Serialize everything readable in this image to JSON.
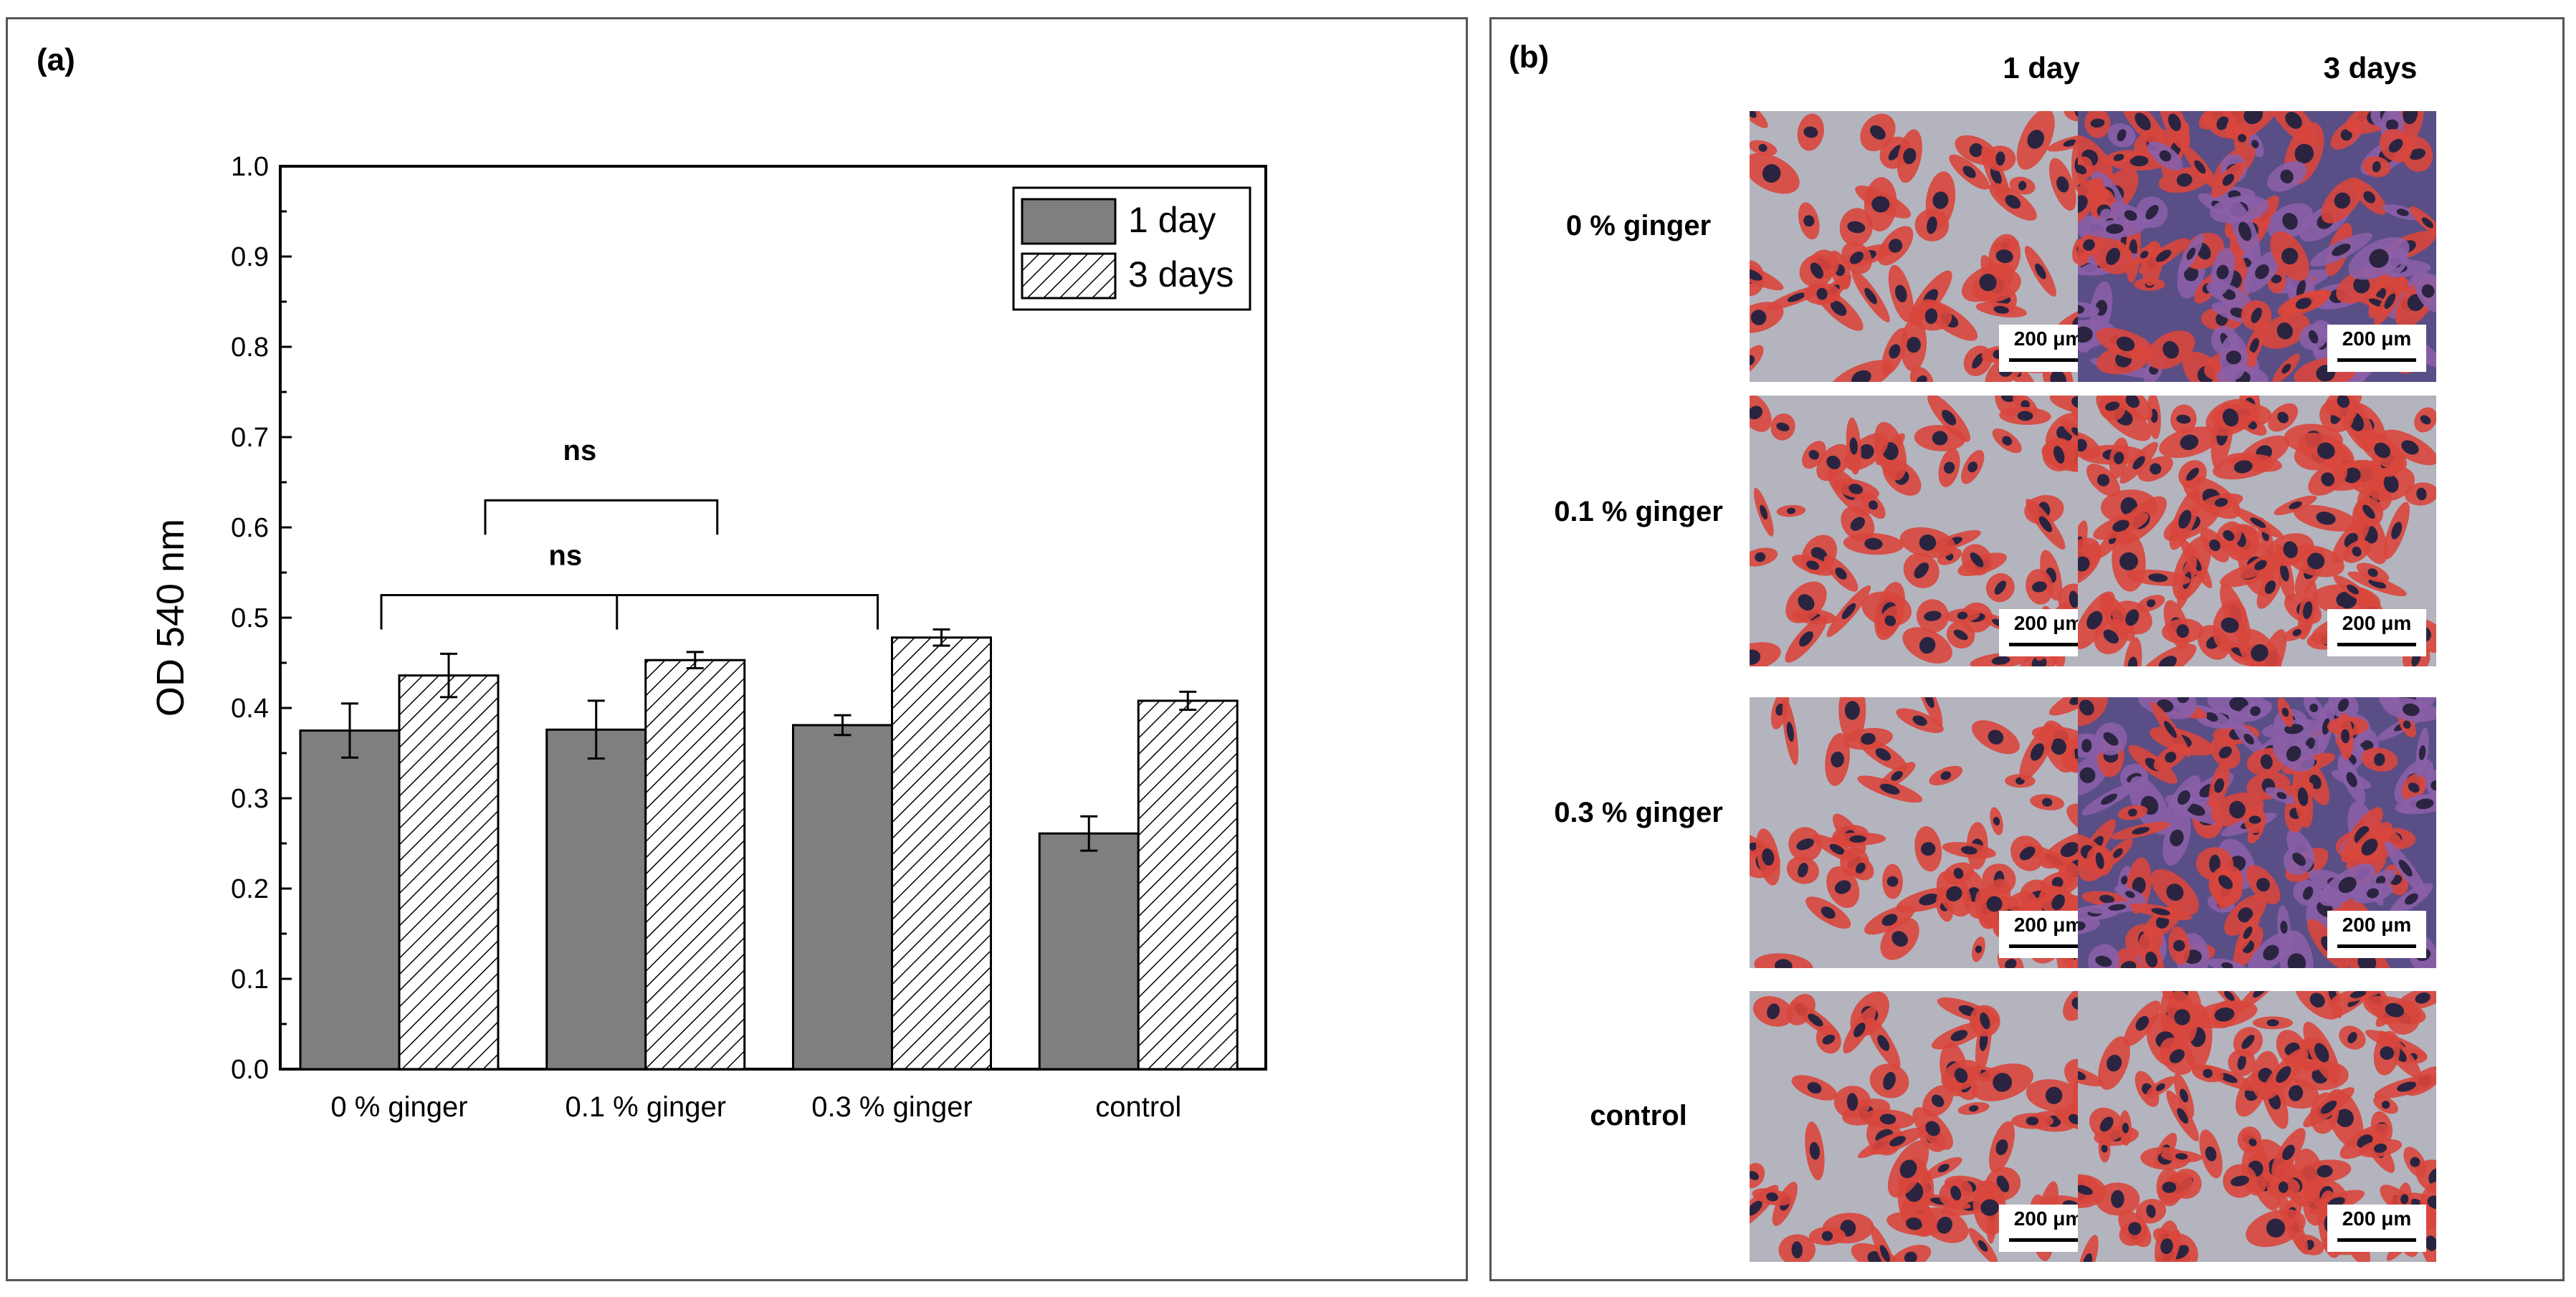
{
  "panel_a": {
    "label": "(a)"
  },
  "panel_b": {
    "label": "(b)",
    "columns": [
      "1 day",
      "3 days"
    ],
    "rows": [
      "0 % ginger",
      "0.1 % ginger",
      "0.3 % ginger",
      "control"
    ],
    "scale_bar": "200 μm",
    "colors": {
      "stain_red": "#d8463c",
      "nuclei": "#2b2440",
      "background": "#b4b4be",
      "dense_purple": "#5a4e86"
    }
  },
  "chart_data": {
    "type": "bar",
    "ylabel": "OD 540 nm",
    "xlabel": "",
    "ylim": [
      0.0,
      1.0
    ],
    "yticks": [
      "0.0",
      "0.1",
      "0.2",
      "0.3",
      "0.4",
      "0.5",
      "0.6",
      "0.7",
      "0.8",
      "0.9",
      "1.0"
    ],
    "categories": [
      "0 % ginger",
      "0.1 % ginger",
      "0.3 % ginger",
      "control"
    ],
    "series": [
      {
        "name": "1 day",
        "values": [
          0.375,
          0.376,
          0.381,
          0.261
        ],
        "errors": [
          0.03,
          0.032,
          0.011,
          0.019
        ],
        "fill": "#7f7f7f",
        "pattern": "solid"
      },
      {
        "name": "3 days",
        "values": [
          0.436,
          0.453,
          0.478,
          0.408
        ],
        "errors": [
          0.024,
          0.009,
          0.009,
          0.01
        ],
        "fill": "#ffffff",
        "pattern": "hatched"
      }
    ],
    "legend": "top-right",
    "annotations": [
      {
        "text": "ns",
        "span": [
          "0 % ginger",
          "0.1 % ginger"
        ],
        "level": 0.63
      },
      {
        "text": "ns",
        "span": [
          "0 % ginger",
          "0.3 % ginger"
        ],
        "level": 0.525
      }
    ],
    "grid": false
  }
}
